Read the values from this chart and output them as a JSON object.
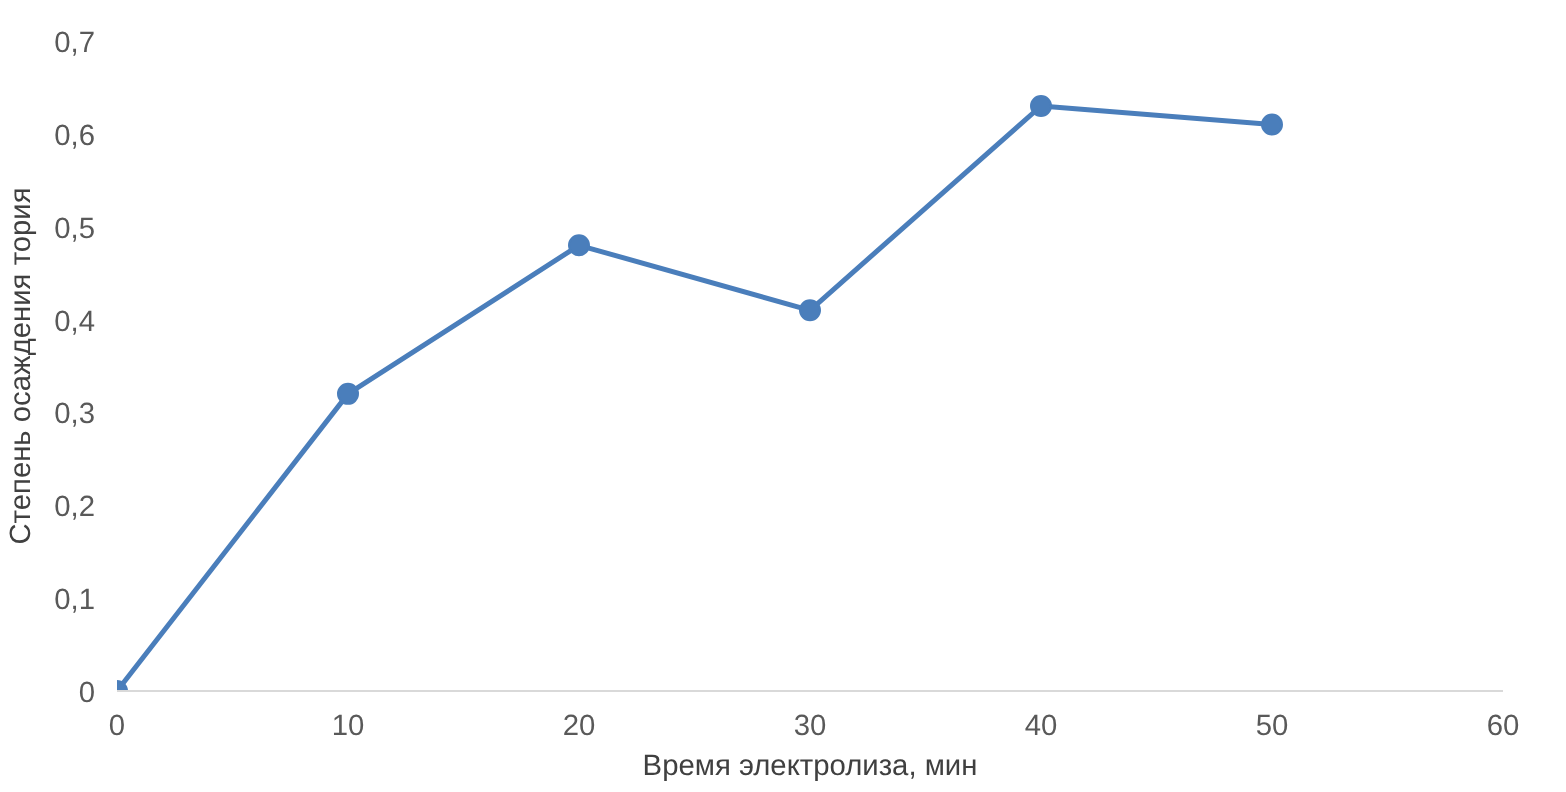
{
  "chart_data": {
    "type": "line",
    "xlabel": "Время электролиза, мин",
    "ylabel": "Степень осаждения тория",
    "x": [
      0,
      10,
      20,
      30,
      40,
      50
    ],
    "series": [
      {
        "color": "#4a7ebb",
        "values": [
          0,
          0.32,
          0.48,
          0.41,
          0.63,
          0.61
        ]
      }
    ],
    "xlim": [
      0,
      60
    ],
    "xticks": [
      0,
      10,
      20,
      30,
      40,
      50,
      60
    ],
    "ylim": [
      0,
      0.7
    ],
    "yticks": [
      {
        "value": 0,
        "label": "0"
      },
      {
        "value": 0.1,
        "label": "0,1"
      },
      {
        "value": 0.2,
        "label": "0,2"
      },
      {
        "value": 0.3,
        "label": "0,3"
      },
      {
        "value": 0.4,
        "label": "0,4"
      },
      {
        "value": 0.5,
        "label": "0,5"
      },
      {
        "value": 0.6,
        "label": "0,6"
      },
      {
        "value": 0.7,
        "label": "0,7"
      }
    ],
    "grid": false,
    "marker": "circle",
    "line_style": "solid"
  }
}
